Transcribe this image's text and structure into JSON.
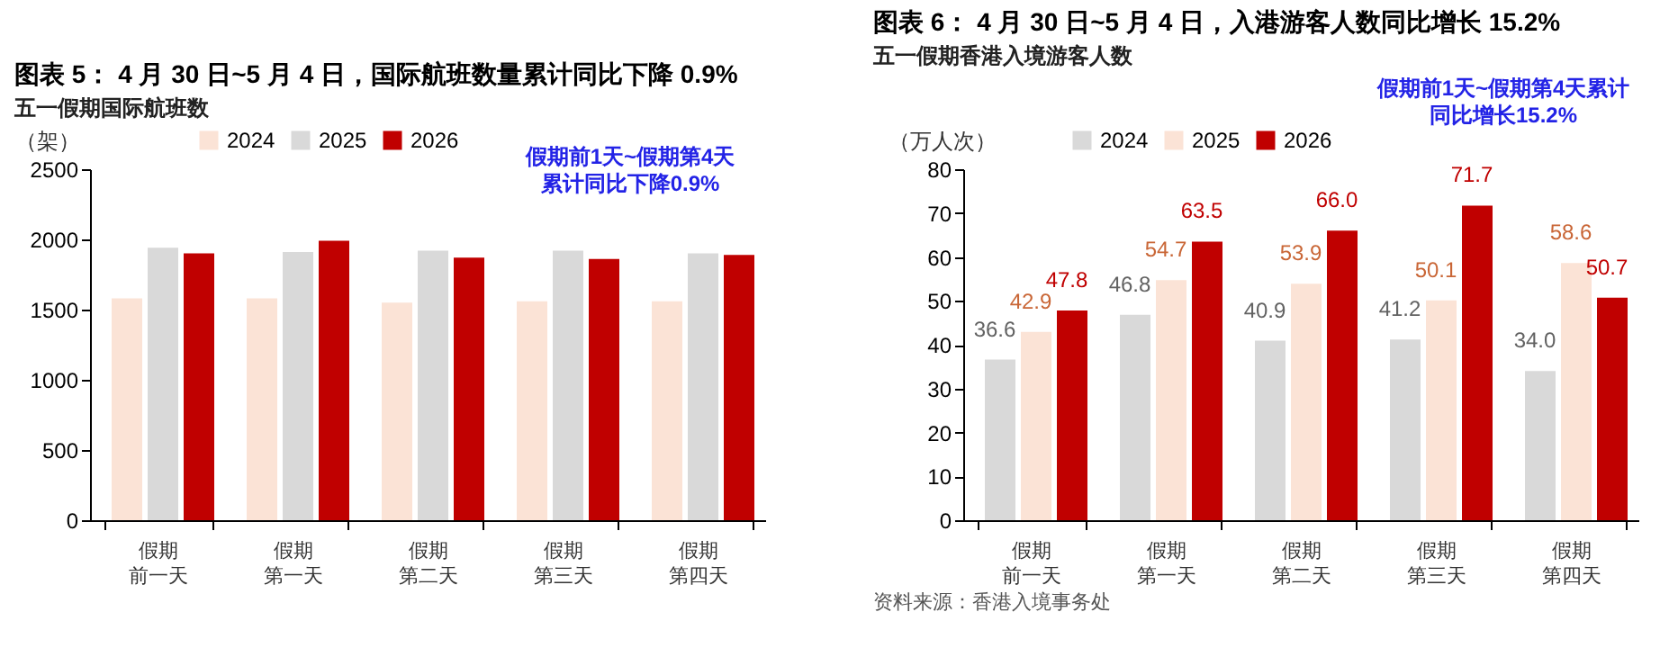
{
  "chart_data": [
    {
      "type": "bar",
      "title": "图表 5： 4 月 30 日~5 月 4 日，国际航班数量累计同比下降 0.9%",
      "subtitle": "五一假期国际航班数",
      "ylabel": "（架）",
      "categories": [
        "假期前一天",
        "假期第一天",
        "假期第二天",
        "假期第三天",
        "假期第四天"
      ],
      "series": [
        {
          "name": "2024",
          "color": "#fbe3d6",
          "values": [
            1580,
            1580,
            1550,
            1560,
            1560
          ]
        },
        {
          "name": "2025",
          "color": "#d9d9d9",
          "values": [
            1940,
            1910,
            1920,
            1920,
            1900
          ]
        },
        {
          "name": "2026",
          "color": "#c00000",
          "values": [
            1900,
            1990,
            1870,
            1860,
            1890
          ]
        }
      ],
      "ylim": [
        0,
        2500
      ],
      "yticks": [
        0,
        500,
        1000,
        1500,
        2000,
        2500
      ],
      "legend": "top",
      "annotations": [
        "假期前1天~假期第4天",
        "累计同比下降0.9%"
      ]
    },
    {
      "type": "bar",
      "title": "图表 6： 4 月 30 日~5 月 4 日，入港游客人数同比增长 15.2%",
      "subtitle": "五一假期香港入境游客人数",
      "ylabel": "（万人次）",
      "categories": [
        "假期前一天",
        "假期第一天",
        "假期第二天",
        "假期第三天",
        "假期第四天"
      ],
      "series": [
        {
          "name": "2024",
          "color": "#d9d9d9",
          "values": [
            36.6,
            46.8,
            40.9,
            41.2,
            34.0
          ],
          "value_labels": [
            "36.6",
            "46.8",
            "40.9",
            "41.2",
            "34.0"
          ]
        },
        {
          "name": "2025",
          "color": "#fbe3d6",
          "values": [
            42.9,
            54.7,
            53.9,
            50.1,
            58.6
          ],
          "value_labels": [
            "42.9",
            "54.7",
            "53.9",
            "50.1",
            "58.6"
          ]
        },
        {
          "name": "2026",
          "color": "#c00000",
          "values": [
            47.8,
            63.5,
            66.0,
            71.7,
            50.7
          ],
          "value_labels": [
            "47.8",
            "63.5",
            "66.0",
            "71.7",
            "50.7"
          ]
        }
      ],
      "ylim": [
        0,
        80
      ],
      "yticks": [
        0,
        10,
        20,
        30,
        40,
        50,
        60,
        70,
        80
      ],
      "legend": "top",
      "annotations": [
        "假期前1天~假期第4天累计",
        "同比增长15.2%",
        "资料来源：香港入境事务处"
      ]
    }
  ]
}
